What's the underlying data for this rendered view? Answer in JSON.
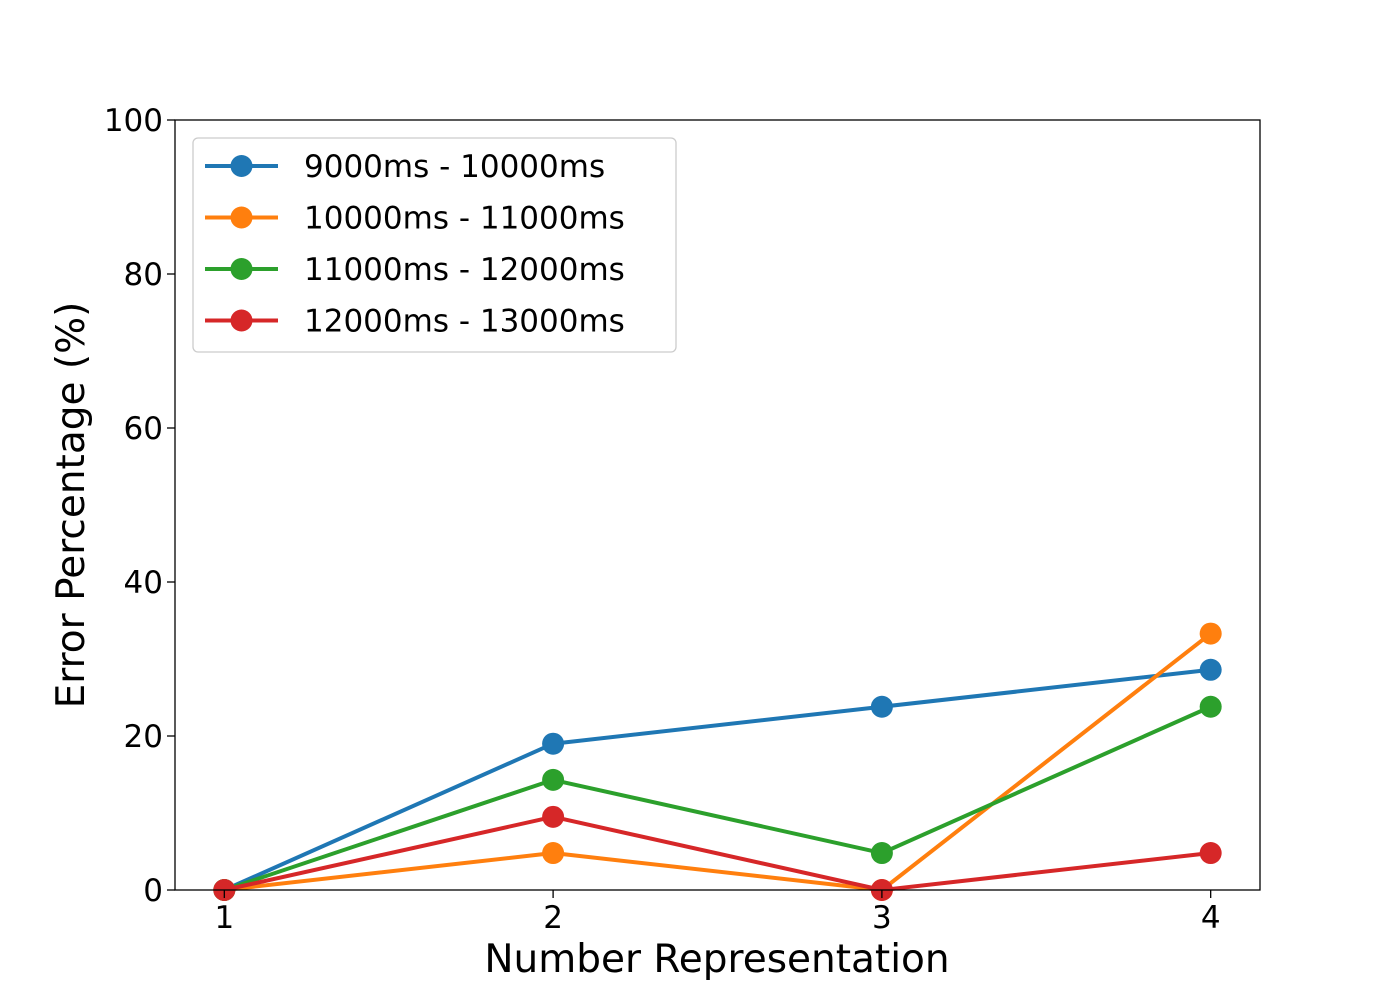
{
  "chart_data": {
    "type": "line",
    "title": "",
    "xlabel": "Number Representation",
    "ylabel": "Error Percentage (%)",
    "x": [
      1,
      2,
      3,
      4
    ],
    "xticks": [
      "1",
      "2",
      "3",
      "4"
    ],
    "yticks": [
      "0",
      "20",
      "40",
      "60",
      "80",
      "100"
    ],
    "ylim": [
      0,
      100
    ],
    "grid": false,
    "legend_position": "top-left",
    "series": [
      {
        "name": "9000ms - 10000ms",
        "color": "#1f77b4",
        "values": [
          0,
          19.0,
          23.8,
          28.6
        ]
      },
      {
        "name": "10000ms - 11000ms",
        "color": "#ff7f0e",
        "values": [
          0,
          4.8,
          0,
          33.3
        ]
      },
      {
        "name": "11000ms - 12000ms",
        "color": "#2ca02c",
        "values": [
          0,
          14.3,
          4.8,
          23.8
        ]
      },
      {
        "name": "12000ms - 13000ms",
        "color": "#d62728",
        "values": [
          0,
          9.5,
          0,
          4.8
        ]
      }
    ]
  }
}
